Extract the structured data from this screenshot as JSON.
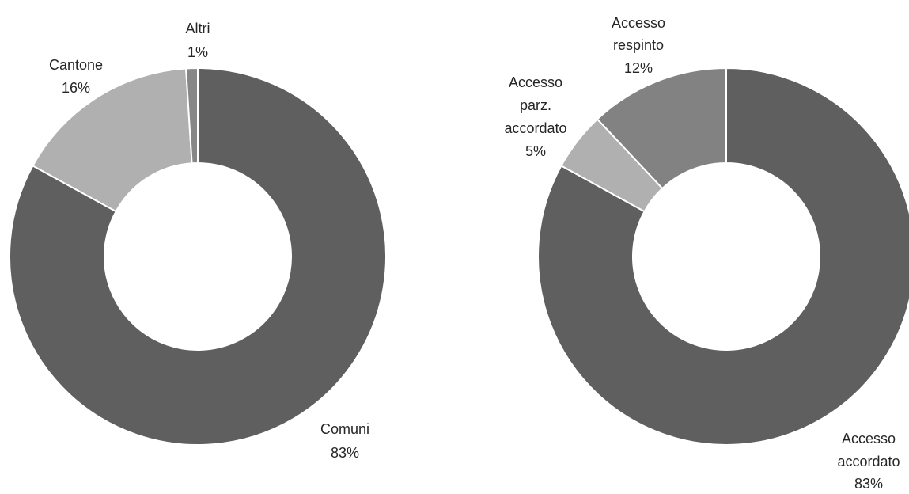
{
  "chart_data": [
    {
      "type": "pie",
      "variant": "donut",
      "title": "",
      "slices": [
        {
          "name": "Comuni",
          "value": 83,
          "label": "83%",
          "color": "#5f5f5f"
        },
        {
          "name": "Cantone",
          "value": 16,
          "label": "16%",
          "color": "#b0b0b0"
        },
        {
          "name": "Altri",
          "value": 1,
          "label": "1%",
          "color": "#878787"
        }
      ]
    },
    {
      "type": "pie",
      "variant": "donut",
      "title": "",
      "slices": [
        {
          "name": "Accesso accordato",
          "value": 83,
          "label": "83%",
          "color": "#5f5f5f"
        },
        {
          "name": "Accesso parz. accordato",
          "value": 5,
          "label": "5%",
          "color": "#b0b0b0"
        },
        {
          "name": "Accesso respinto",
          "value": 12,
          "label": "12%",
          "color": "#828282"
        }
      ]
    }
  ]
}
